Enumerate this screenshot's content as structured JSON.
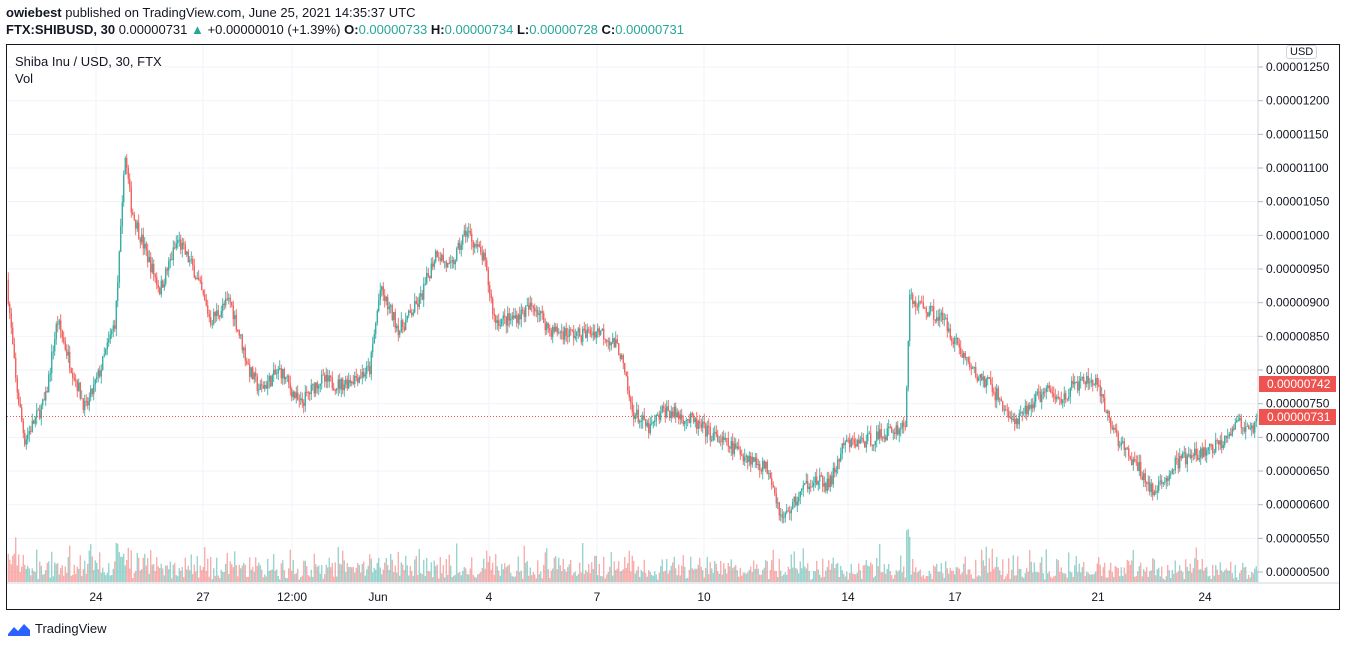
{
  "header": {
    "author": "owiebest",
    "published": "published on TradingView.com, June 25, 2021 14:35:37 UTC"
  },
  "ticker": {
    "symbol": "FTX:SHIBUSD, 30",
    "last": "0.00000731",
    "change": "+0.00000010 (+1.39%)",
    "o_label": "O:",
    "o": "0.00000733",
    "h_label": "H:",
    "h": "0.00000734",
    "l_label": "L:",
    "l": "0.00000728",
    "c_label": "C:",
    "c": "0.00000731",
    "arrow": "▲"
  },
  "legend": {
    "title": "Shiba Inu / USD, 30, FTX",
    "vol": "Vol"
  },
  "currency_button": "USD",
  "price_labels": {
    "high_marker": "0.00000742",
    "last": "0.00000731"
  },
  "footer": {
    "brand": "TradingView"
  },
  "colors": {
    "up": "#26a69a",
    "down": "#ef5350",
    "grid": "#f0f3fa"
  },
  "chart_data": {
    "type": "candlestick",
    "interval": "30",
    "y_ticks": [
      "0.00001250",
      "0.00001200",
      "0.00001150",
      "0.00001100",
      "0.00001050",
      "0.00001000",
      "0.00000950",
      "0.00000900",
      "0.00000850",
      "0.00000800",
      "0.00000750",
      "0.00000700",
      "0.00000650",
      "0.00000600",
      "0.00000550",
      "0.00000500"
    ],
    "ylim": [
      4.83e-06,
      1.267e-05
    ],
    "x_ticks": [
      "24",
      "27",
      "12:00",
      "Jun",
      "4",
      "7",
      "10",
      "14",
      "17",
      "21",
      "24"
    ],
    "last_price": 7.31e-06,
    "grid": true,
    "approx_close": [
      [
        "2021-05-21T12:00",
        9.34e-06
      ],
      [
        "2021-05-21T18:00",
        7.85e-06
      ],
      [
        "2021-05-22T00:00",
        6.96e-06
      ],
      [
        "2021-05-22T07:00",
        7.26e-06
      ],
      [
        "2021-05-22T14:00",
        7.55e-06
      ],
      [
        "2021-05-22T22:00",
        8.74e-06
      ],
      [
        "2021-05-23T06:00",
        8.15e-06
      ],
      [
        "2021-05-23T17:00",
        7.41e-06
      ],
      [
        "2021-05-24T03:00",
        8e-06
      ],
      [
        "2021-05-24T13:00",
        8.74e-06
      ],
      [
        "2021-05-24T18:00",
        1.052e-05
      ],
      [
        "2021-05-24T19:00",
        1.127e-05
      ],
      [
        "2021-05-25T00:00",
        1.038e-05
      ],
      [
        "2021-05-25T09:00",
        9.78e-06
      ],
      [
        "2021-05-25T19:00",
        9.19e-06
      ],
      [
        "2021-05-26T07:00",
        9.93e-06
      ],
      [
        "2021-05-26T18:00",
        9.48e-06
      ],
      [
        "2021-05-27T05:00",
        8.74e-06
      ],
      [
        "2021-05-27T18:00",
        9.04e-06
      ],
      [
        "2021-05-28T07:00",
        8e-06
      ],
      [
        "2021-05-28T14:00",
        7.7e-06
      ],
      [
        "2021-05-29T04:00",
        8e-06
      ],
      [
        "2021-05-29T17:00",
        7.48e-06
      ],
      [
        "2021-05-30T06:00",
        7.85e-06
      ],
      [
        "2021-05-30T20:00",
        7.78e-06
      ],
      [
        "2021-05-31T16:00",
        8e-06
      ],
      [
        "2021-05-31T23:00",
        9.19e-06
      ],
      [
        "2021-06-01T12:00",
        8.59e-06
      ],
      [
        "2021-06-02T02:00",
        9.04e-06
      ],
      [
        "2021-06-02T13:00",
        9.78e-06
      ],
      [
        "2021-06-02T22:00",
        9.48e-06
      ],
      [
        "2021-06-03T09:00",
        1.008e-05
      ],
      [
        "2021-06-03T21:00",
        9.63e-06
      ],
      [
        "2021-06-04T04:00",
        8.74e-06
      ],
      [
        "2021-06-04T14:00",
        8.74e-06
      ],
      [
        "2021-06-05T07:00",
        8.96e-06
      ],
      [
        "2021-06-05T17:00",
        8.59e-06
      ],
      [
        "2021-06-06T13:00",
        8.52e-06
      ],
      [
        "2021-06-07T03:00",
        8.59e-06
      ],
      [
        "2021-06-07T16:00",
        8.3e-06
      ],
      [
        "2021-06-08T00:00",
        7.41e-06
      ],
      [
        "2021-06-08T12:00",
        7.11e-06
      ],
      [
        "2021-06-08T22:00",
        7.41e-06
      ],
      [
        "2021-06-09T15:00",
        7.26e-06
      ],
      [
        "2021-06-10T11:00",
        6.96e-06
      ],
      [
        "2021-06-11T04:00",
        6.74e-06
      ],
      [
        "2021-06-11T21:00",
        6.51e-06
      ],
      [
        "2021-06-12T05:00",
        5.77e-06
      ],
      [
        "2021-06-12T10:00",
        5.92e-06
      ],
      [
        "2021-06-13T00:00",
        6.37e-06
      ],
      [
        "2021-06-13T13:00",
        6.29e-06
      ],
      [
        "2021-06-13T23:00",
        6.89e-06
      ],
      [
        "2021-06-14T16:00",
        6.96e-06
      ],
      [
        "2021-06-15T16:00",
        7.18e-06
      ],
      [
        "2021-06-15T19:00",
        9.04e-06
      ],
      [
        "2021-06-16T08:00",
        8.89e-06
      ],
      [
        "2021-06-16T18:00",
        8.74e-06
      ],
      [
        "2021-06-17T05:00",
        8.3e-06
      ],
      [
        "2021-06-17T15:00",
        7.93e-06
      ],
      [
        "2021-06-18T01:00",
        7.78e-06
      ],
      [
        "2021-06-18T18:00",
        7.18e-06
      ],
      [
        "2021-06-19T04:00",
        7.48e-06
      ],
      [
        "2021-06-19T14:00",
        7.7e-06
      ],
      [
        "2021-06-20T00:00",
        7.55e-06
      ],
      [
        "2021-06-20T10:00",
        7.78e-06
      ],
      [
        "2021-06-20T23:00",
        7.85e-06
      ],
      [
        "2021-06-21T09:00",
        7.26e-06
      ],
      [
        "2021-06-21T19:00",
        6.81e-06
      ],
      [
        "2021-06-22T06:00",
        6.51e-06
      ],
      [
        "2021-06-22T16:00",
        6.14e-06
      ],
      [
        "2021-06-22T22:00",
        6.37e-06
      ],
      [
        "2021-06-23T08:00",
        6.66e-06
      ],
      [
        "2021-06-23T22:00",
        6.74e-06
      ],
      [
        "2021-06-24T11:00",
        6.89e-06
      ],
      [
        "2021-06-24T23:00",
        7.26e-06
      ],
      [
        "2021-06-25T08:00",
        7.04e-06
      ],
      [
        "2021-06-25T14:00",
        7.31e-06
      ]
    ]
  }
}
